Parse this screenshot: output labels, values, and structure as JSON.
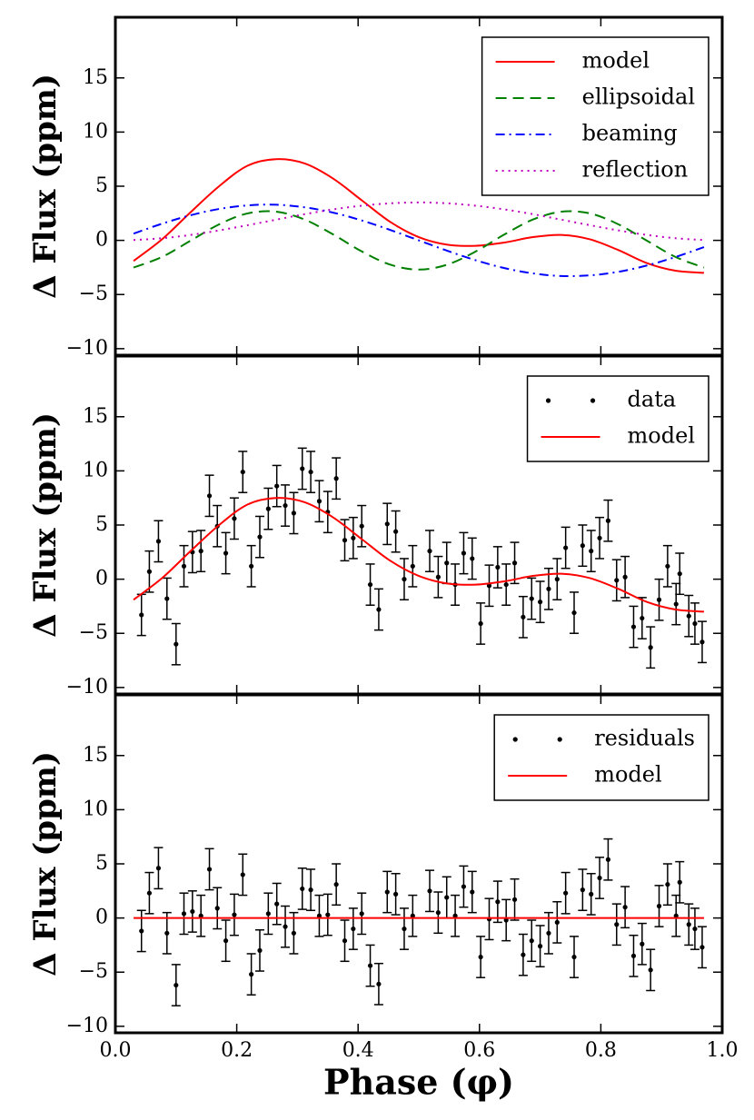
{
  "chart_data": [
    {
      "type": "line",
      "ylabel": "Δ Flux (ppm)",
      "xlim": [
        0,
        1
      ],
      "ylim": [
        -10.6,
        20.6
      ],
      "xticks": [
        0,
        0.2,
        0.4,
        0.6,
        0.8,
        1
      ],
      "yticks": [
        {
          "value": -10,
          "label": "−10"
        },
        {
          "value": -5,
          "label": "−5"
        },
        0,
        5,
        10,
        15
      ],
      "legend": "upper right",
      "x": [
        0.03,
        0.077,
        0.124,
        0.171,
        0.218,
        0.265,
        0.312,
        0.359,
        0.406,
        0.453,
        0.5,
        0.547,
        0.594,
        0.641,
        0.688,
        0.735,
        0.782,
        0.829,
        0.876,
        0.923,
        0.97
      ],
      "series": [
        {
          "name": "model",
          "color": "#ff0000",
          "style": "solid",
          "values": [
            -1.9,
            0.1,
            2.6,
            5.0,
            6.9,
            7.5,
            7.1,
            5.7,
            3.7,
            1.7,
            0.3,
            -0.4,
            -0.5,
            -0.2,
            0.3,
            0.5,
            0.1,
            -0.9,
            -2.1,
            -2.8,
            -3.0
          ]
        },
        {
          "name": "ellipsoidal",
          "color": "#008000",
          "style": "dashed",
          "values": [
            -2.51,
            -1.53,
            -0.03,
            1.48,
            2.49,
            2.65,
            1.92,
            0.54,
            -1.02,
            -2.24,
            -2.7,
            -2.24,
            -1.02,
            0.54,
            1.92,
            2.65,
            2.49,
            1.48,
            -0.03,
            -1.53,
            -2.51
          ]
        },
        {
          "name": "beaming",
          "color": "#0000ff",
          "style": "dashdot",
          "values": [
            0.62,
            1.54,
            2.32,
            2.9,
            3.23,
            3.29,
            3.05,
            2.56,
            1.84,
            0.96,
            0,
            -0.96,
            -1.84,
            -2.56,
            -3.05,
            -3.29,
            -3.23,
            -2.9,
            -2.32,
            -1.54,
            -0.62
          ]
        },
        {
          "name": "reflection",
          "color": "#bf00bf",
          "style": "dotted",
          "values": [
            0.03,
            0.2,
            0.5,
            0.92,
            1.4,
            1.91,
            2.42,
            2.86,
            3.2,
            3.42,
            3.5,
            3.42,
            3.2,
            2.86,
            2.42,
            1.91,
            1.4,
            0.92,
            0.5,
            0.2,
            0.03
          ]
        }
      ]
    },
    {
      "type": "line",
      "ylabel": "Δ Flux (ppm)",
      "xlim": [
        0,
        1
      ],
      "ylim": [
        -10.6,
        20.6
      ],
      "xticks": [
        0,
        0.2,
        0.4,
        0.6,
        0.8,
        1
      ],
      "yticks": [
        {
          "value": -10,
          "label": "−10"
        },
        {
          "value": -5,
          "label": "−5"
        },
        0,
        5,
        10,
        15
      ],
      "legend": "upper right",
      "series": [
        {
          "name": "data",
          "color": "#000000",
          "style": "points",
          "x": [
            0.043,
            0.056,
            0.071,
            0.085,
            0.1,
            0.113,
            0.127,
            0.141,
            0.155,
            0.168,
            0.182,
            0.196,
            0.21,
            0.224,
            0.238,
            0.252,
            0.266,
            0.28,
            0.294,
            0.308,
            0.322,
            0.336,
            0.35,
            0.364,
            0.378,
            0.392,
            0.406,
            0.42,
            0.434,
            0.448,
            0.462,
            0.476,
            0.49,
            0.518,
            0.532,
            0.546,
            0.56,
            0.574,
            0.588,
            0.602,
            0.616,
            0.63,
            0.644,
            0.658,
            0.672,
            0.686,
            0.7,
            0.714,
            0.728,
            0.742,
            0.756,
            0.77,
            0.784,
            0.798,
            0.812,
            0.826,
            0.84,
            0.854,
            0.868,
            0.882,
            0.896,
            0.91,
            0.924,
            0.93,
            0.945,
            0.955,
            0.967
          ],
          "values": [
            -3.3,
            0.7,
            3.5,
            -1.8,
            -6.0,
            1.2,
            2.5,
            2.6,
            7.7,
            4.9,
            2.4,
            5.6,
            9.9,
            1.2,
            3.9,
            6.5,
            8.6,
            6.8,
            6.1,
            10.2,
            9.9,
            7.2,
            6.2,
            9.3,
            3.6,
            3.8,
            4.9,
            -0.5,
            -2.8,
            5.1,
            4.4,
            0,
            1.2,
            2.6,
            0.2,
            1.5,
            -0.5,
            2.4,
            1.9,
            -4.1,
            -0.6,
            1.1,
            -0.5,
            1.5,
            -3.5,
            -1.8,
            -2.1,
            -0.9,
            0,
            2.9,
            -3.1,
            3.1,
            2.6,
            3.8,
            5.4,
            -0.1,
            0.2,
            -4.4,
            -3.6,
            -6.3,
            -1.9,
            1.2,
            -2.3,
            0.5,
            -3.4,
            -4.1,
            -5.8
          ],
          "errors": [
            1.9,
            1.9,
            1.9,
            1.9,
            1.9,
            1.9,
            1.9,
            1.9,
            1.9,
            1.9,
            1.9,
            1.9,
            1.9,
            1.9,
            1.9,
            1.9,
            1.9,
            1.9,
            1.9,
            1.9,
            1.9,
            1.9,
            1.9,
            1.9,
            1.9,
            1.9,
            1.9,
            1.9,
            1.9,
            1.9,
            1.9,
            1.9,
            1.9,
            1.9,
            1.9,
            1.9,
            1.9,
            1.9,
            1.9,
            1.9,
            1.9,
            1.9,
            1.9,
            1.9,
            1.9,
            1.9,
            1.9,
            1.9,
            1.9,
            1.9,
            1.9,
            1.9,
            1.9,
            1.9,
            1.9,
            1.9,
            1.9,
            1.9,
            1.9,
            1.9,
            1.9,
            1.9,
            1.9,
            1.9,
            1.9,
            1.9,
            1.9
          ]
        },
        {
          "name": "model",
          "color": "#ff0000",
          "style": "solid",
          "x": [
            0.03,
            0.077,
            0.124,
            0.171,
            0.218,
            0.265,
            0.312,
            0.359,
            0.406,
            0.453,
            0.5,
            0.547,
            0.594,
            0.641,
            0.688,
            0.735,
            0.782,
            0.829,
            0.876,
            0.923,
            0.97
          ],
          "values": [
            -1.9,
            0.1,
            2.6,
            5.0,
            6.9,
            7.5,
            7.1,
            5.7,
            3.7,
            1.7,
            0.3,
            -0.4,
            -0.5,
            -0.2,
            0.3,
            0.5,
            0.1,
            -0.9,
            -2.1,
            -2.8,
            -3.0
          ]
        }
      ]
    },
    {
      "type": "line",
      "ylabel": "Δ Flux (ppm)",
      "xlabel": "Phase (φ)",
      "xlim": [
        0,
        1
      ],
      "ylim": [
        -10.6,
        20.6
      ],
      "xticks": [
        {
          "value": 0,
          "label": "0.0"
        },
        0.2,
        0.4,
        0.6,
        0.8,
        {
          "value": 1,
          "label": "1.0"
        }
      ],
      "show_xtick_labels": true,
      "yticks": [
        {
          "value": -10,
          "label": "−10"
        },
        {
          "value": -5,
          "label": "−5"
        },
        0,
        5,
        10,
        15
      ],
      "legend": "upper right",
      "series": [
        {
          "name": "residuals",
          "color": "#000000",
          "style": "points",
          "x": [
            0.043,
            0.056,
            0.071,
            0.085,
            0.1,
            0.113,
            0.127,
            0.141,
            0.155,
            0.168,
            0.182,
            0.196,
            0.21,
            0.224,
            0.238,
            0.252,
            0.266,
            0.28,
            0.294,
            0.308,
            0.322,
            0.336,
            0.35,
            0.364,
            0.378,
            0.392,
            0.406,
            0.42,
            0.434,
            0.448,
            0.462,
            0.476,
            0.49,
            0.518,
            0.532,
            0.546,
            0.56,
            0.574,
            0.588,
            0.602,
            0.616,
            0.63,
            0.644,
            0.658,
            0.672,
            0.686,
            0.7,
            0.714,
            0.728,
            0.742,
            0.756,
            0.77,
            0.784,
            0.798,
            0.812,
            0.826,
            0.84,
            0.854,
            0.868,
            0.882,
            0.896,
            0.91,
            0.924,
            0.93,
            0.945,
            0.955,
            0.967
          ],
          "values": [
            -1.2,
            2.3,
            4.6,
            -1.4,
            -6.2,
            0.4,
            0.6,
            0.2,
            4.5,
            0.9,
            -2.1,
            0.3,
            4.0,
            -5.2,
            -3.0,
            0.4,
            1.3,
            -0.8,
            -1.4,
            2.7,
            2.6,
            0.2,
            0.3,
            3.1,
            -2.1,
            -1.0,
            0.4,
            -4.4,
            -6.1,
            2.4,
            2.2,
            -1.0,
            0.2,
            2.5,
            0.5,
            1.9,
            0.2,
            2.9,
            2.4,
            -3.6,
            -0.1,
            1.5,
            -0.2,
            1.7,
            -3.4,
            -2.1,
            -2.6,
            -1.4,
            -0.4,
            2.3,
            -3.6,
            2.6,
            2.2,
            3.7,
            5.4,
            -0.6,
            1.0,
            -3.5,
            -2.4,
            -4.8,
            1.1,
            3.1,
            0.2,
            3.3,
            -0.6,
            -1.0,
            -2.7
          ],
          "errors": [
            1.9,
            1.9,
            1.9,
            1.9,
            1.9,
            1.9,
            1.9,
            1.9,
            1.9,
            1.9,
            1.9,
            1.9,
            1.9,
            1.9,
            1.9,
            1.9,
            1.9,
            1.9,
            1.9,
            1.9,
            1.9,
            1.9,
            1.9,
            1.9,
            1.9,
            1.9,
            1.9,
            1.9,
            1.9,
            1.9,
            1.9,
            1.9,
            1.9,
            1.9,
            1.9,
            1.9,
            1.9,
            1.9,
            1.9,
            1.9,
            1.9,
            1.9,
            1.9,
            1.9,
            1.9,
            1.9,
            1.9,
            1.9,
            1.9,
            1.9,
            1.9,
            1.9,
            1.9,
            1.9,
            1.9,
            1.9,
            1.9,
            1.9,
            1.9,
            1.9,
            1.9,
            1.9,
            1.9,
            1.9,
            1.9,
            1.9,
            1.9
          ]
        },
        {
          "name": "model",
          "color": "#ff0000",
          "style": "solid",
          "x": [
            0.03,
            0.97
          ],
          "values": [
            0,
            0
          ]
        }
      ]
    }
  ]
}
